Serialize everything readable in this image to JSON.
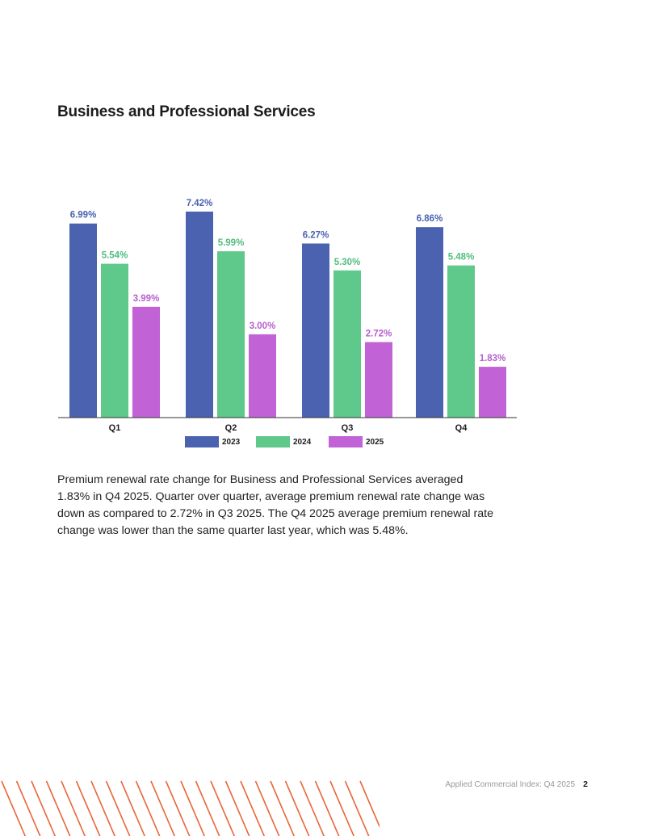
{
  "page": {
    "title": "Business and Professional Services",
    "summary": "Premium renewal rate change for Business and Professional Services averaged 1.83% in Q4 2025. Quarter over quarter, average premium renewal rate change was down as compared to 2.72% in Q3 2025. The Q4 2025 average premium renewal rate change was lower than the same quarter last year, which was 5.48%.",
    "footer": "Applied Commercial Index: Q4 2025",
    "page_number": "2"
  },
  "colors": {
    "2023": "#4a62b0",
    "2024": "#5ec98b",
    "2025": "#c162d6",
    "footer_stripes": "#e8673a"
  },
  "chart_data": {
    "type": "bar",
    "categories": [
      "Q1",
      "Q2",
      "Q3",
      "Q4"
    ],
    "series": [
      {
        "name": "2023",
        "values": [
          6.99,
          7.42,
          6.27,
          6.86
        ],
        "labels": [
          "6.99%",
          "7.42%",
          "6.27%",
          "6.86%"
        ]
      },
      {
        "name": "2024",
        "values": [
          5.54,
          5.99,
          5.3,
          5.48
        ],
        "labels": [
          "5.54%",
          "5.99%",
          "5.30%",
          "5.48%"
        ]
      },
      {
        "name": "2025",
        "values": [
          3.99,
          3.0,
          2.72,
          1.83
        ],
        "labels": [
          "3.99%",
          "3.00%",
          "2.72%",
          "1.83%"
        ]
      }
    ],
    "title": "",
    "xlabel": "",
    "ylabel": "",
    "ylim": [
      0,
      8
    ],
    "legend_position": "bottom",
    "grid": false
  }
}
